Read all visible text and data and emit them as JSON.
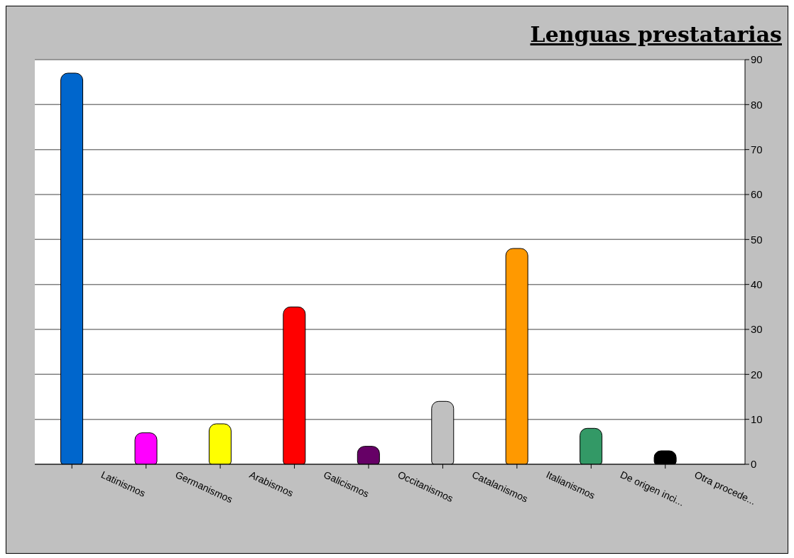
{
  "chart_data": {
    "type": "bar",
    "title": "Lenguas prestatarias",
    "categories": [
      "Latinismos",
      "Germanismos",
      "Arabismos",
      "Galicismos",
      "Occitanismos",
      "Catalanismos",
      "Italianismos",
      "De origen inci...",
      "Otra procede..."
    ],
    "values": [
      87,
      7,
      9,
      35,
      4,
      14,
      48,
      8,
      3
    ],
    "colors": [
      "#0066cc",
      "#ff00ff",
      "#ffff00",
      "#ff0000",
      "#660066",
      "#c0c0c0",
      "#ff9900",
      "#339966",
      "#000000"
    ],
    "ylim": [
      0,
      90
    ],
    "yticks": [
      0,
      10,
      20,
      30,
      40,
      50,
      60,
      70,
      80,
      90
    ],
    "grid": "y",
    "legend": false
  }
}
